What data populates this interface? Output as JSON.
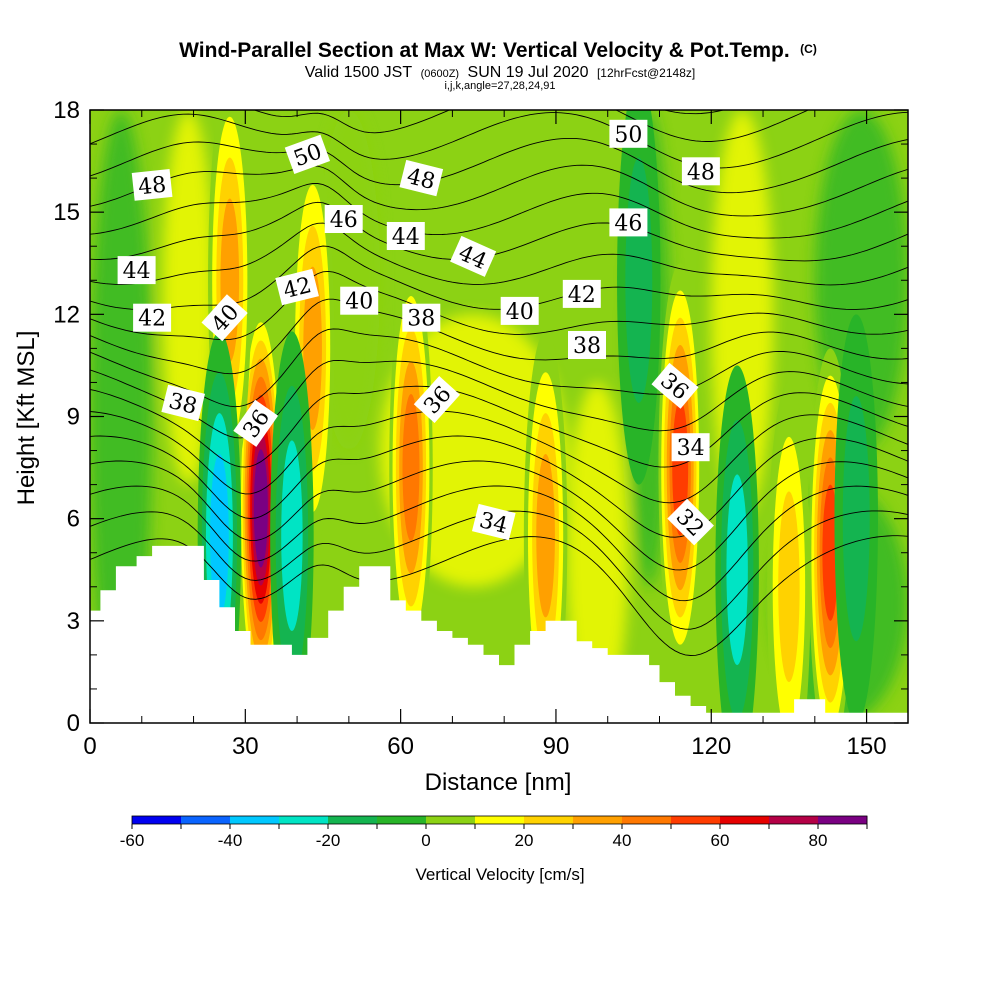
{
  "chart_data": {
    "type": "heatmap",
    "title": "Wind-Parallel Section at Max W: Vertical Velocity & Pot.Temp.",
    "title_mark": "(C)",
    "subtitle_parts": [
      "Valid 1500 JST",
      "(0600Z)",
      "SUN 19 Jul 2020",
      "[12hrFcst@2148z]"
    ],
    "subtitle2": "i,j,k,angle=27,28,24,91",
    "xlabel": "Distance [nm]",
    "ylabel": "Height [Kft MSL]",
    "xlim": [
      0,
      158
    ],
    "ylim": [
      0,
      18
    ],
    "x_ticks": [
      "0",
      "30",
      "60",
      "90",
      "120",
      "150"
    ],
    "y_ticks": [
      "0",
      "3",
      "6",
      "9",
      "12",
      "15",
      "18"
    ],
    "colorbar": {
      "label": "Vertical Velocity [cm/s]",
      "ticks": [
        "-60",
        "-40",
        "-20",
        "0",
        "20",
        "40",
        "60",
        "80"
      ],
      "bounds": [
        -60,
        90
      ],
      "step": 10,
      "colors": [
        "#0000f0",
        "#0a64ff",
        "#00c8ff",
        "#00e4c4",
        "#14b450",
        "#28b428",
        "#8cd214",
        "#ffff00",
        "#ffd200",
        "#ffa000",
        "#ff7800",
        "#ff3c00",
        "#e60000",
        "#b40046",
        "#7a0082"
      ]
    },
    "terrain_kft": [
      [
        0,
        3.3
      ],
      [
        2,
        3.3
      ],
      [
        2,
        3.9
      ],
      [
        5,
        3.9
      ],
      [
        5,
        4.6
      ],
      [
        9,
        4.6
      ],
      [
        9,
        4.9
      ],
      [
        12,
        4.9
      ],
      [
        12,
        5.2
      ],
      [
        16,
        5.2
      ],
      [
        16,
        5.2
      ],
      [
        22,
        5.2
      ],
      [
        22,
        4.2
      ],
      [
        25,
        4.2
      ],
      [
        25,
        3.4
      ],
      [
        28,
        3.4
      ],
      [
        28,
        2.7
      ],
      [
        31,
        2.7
      ],
      [
        31,
        2.3
      ],
      [
        37,
        2.3
      ],
      [
        37,
        2.3
      ],
      [
        39,
        2.3
      ],
      [
        39,
        2.0
      ],
      [
        42,
        2.0
      ],
      [
        42,
        2.5
      ],
      [
        46,
        2.5
      ],
      [
        46,
        3.3
      ],
      [
        49,
        3.3
      ],
      [
        49,
        4.0
      ],
      [
        52,
        4.0
      ],
      [
        52,
        4.6
      ],
      [
        55,
        4.6
      ],
      [
        55,
        4.6
      ],
      [
        58,
        4.6
      ],
      [
        58,
        3.6
      ],
      [
        61,
        3.6
      ],
      [
        61,
        3.3
      ],
      [
        64,
        3.3
      ],
      [
        64,
        3.0
      ],
      [
        67,
        3.0
      ],
      [
        67,
        2.7
      ],
      [
        70,
        2.7
      ],
      [
        70,
        2.5
      ],
      [
        73,
        2.5
      ],
      [
        73,
        2.3
      ],
      [
        76,
        2.3
      ],
      [
        76,
        2.0
      ],
      [
        79,
        2.0
      ],
      [
        79,
        1.7
      ],
      [
        82,
        1.7
      ],
      [
        82,
        2.3
      ],
      [
        85,
        2.3
      ],
      [
        85,
        2.7
      ],
      [
        88,
        2.7
      ],
      [
        88,
        3.0
      ],
      [
        94,
        3.0
      ],
      [
        94,
        2.4
      ],
      [
        97,
        2.4
      ],
      [
        97,
        2.2
      ],
      [
        100,
        2.2
      ],
      [
        100,
        2.0
      ],
      [
        104,
        2.0
      ],
      [
        104,
        2.0
      ],
      [
        108,
        2.0
      ],
      [
        108,
        1.7
      ],
      [
        110,
        1.7
      ],
      [
        110,
        1.2
      ],
      [
        113,
        1.2
      ],
      [
        113,
        0.8
      ],
      [
        116,
        0.8
      ],
      [
        116,
        0.5
      ],
      [
        119,
        0.5
      ],
      [
        119,
        0.3
      ],
      [
        124,
        0.3
      ],
      [
        124,
        0.3
      ],
      [
        131,
        0.3
      ],
      [
        131,
        0.3
      ],
      [
        136,
        0.3
      ],
      [
        136,
        0.7
      ],
      [
        142,
        0.7
      ],
      [
        142,
        0.3
      ],
      [
        158,
        0.3
      ]
    ],
    "updraft_cores": [
      {
        "x": 33,
        "z": 6.3,
        "w": 88
      },
      {
        "x": 114,
        "z": 7.5,
        "w": 55
      },
      {
        "x": 143,
        "z": 5.0,
        "w": 55
      },
      {
        "x": 62,
        "z": 7.5,
        "w": 45
      },
      {
        "x": 43,
        "z": 11.0,
        "w": 35
      },
      {
        "x": 27,
        "z": 13.0,
        "w": 35
      },
      {
        "x": 135,
        "z": 4.0,
        "w": 25
      },
      {
        "x": 88,
        "z": 5.5,
        "w": 35
      }
    ],
    "downdraft_cores": [
      {
        "x": 25,
        "z": 5.5,
        "w": -35
      },
      {
        "x": 39,
        "z": 5.5,
        "w": -25
      },
      {
        "x": 125,
        "z": 4.5,
        "w": -25
      },
      {
        "x": 106,
        "z": 13.0,
        "w": -20
      },
      {
        "x": 148,
        "z": 6.0,
        "w": -20
      }
    ],
    "theta_isentropes_K": [
      32,
      33,
      34,
      35,
      36,
      37,
      38,
      39,
      40,
      41,
      42,
      43,
      44,
      45,
      46,
      47,
      48,
      49,
      50,
      51
    ],
    "theta_labels": [
      {
        "text": "50",
        "x": 42,
        "z": 16.7,
        "angle": -20
      },
      {
        "text": "48",
        "x": 12,
        "z": 15.8,
        "angle": -6
      },
      {
        "text": "48",
        "x": 64,
        "z": 16.0,
        "angle": 14
      },
      {
        "text": "50",
        "x": 104,
        "z": 17.3,
        "angle": 0
      },
      {
        "text": "48",
        "x": 118,
        "z": 16.2,
        "angle": 0
      },
      {
        "text": "46",
        "x": 49,
        "z": 14.8,
        "angle": 0
      },
      {
        "text": "46",
        "x": 104,
        "z": 14.7,
        "angle": 0
      },
      {
        "text": "44",
        "x": 9,
        "z": 13.3,
        "angle": 0
      },
      {
        "text": "44",
        "x": 61,
        "z": 14.3,
        "angle": 0
      },
      {
        "text": "44",
        "x": 74,
        "z": 13.7,
        "angle": 24
      },
      {
        "text": "42",
        "x": 12,
        "z": 11.9,
        "angle": 0
      },
      {
        "text": "42",
        "x": 40,
        "z": 12.8,
        "angle": -14
      },
      {
        "text": "42",
        "x": 95,
        "z": 12.6,
        "angle": 0
      },
      {
        "text": "40",
        "x": 26,
        "z": 11.9,
        "angle": -48
      },
      {
        "text": "40",
        "x": 52,
        "z": 12.4,
        "angle": 0
      },
      {
        "text": "40",
        "x": 83,
        "z": 12.1,
        "angle": 0
      },
      {
        "text": "38",
        "x": 64,
        "z": 11.9,
        "angle": 0
      },
      {
        "text": "38",
        "x": 96,
        "z": 11.1,
        "angle": 0
      },
      {
        "text": "38",
        "x": 18,
        "z": 9.4,
        "angle": 14
      },
      {
        "text": "36",
        "x": 32,
        "z": 8.8,
        "angle": -55
      },
      {
        "text": "36",
        "x": 67,
        "z": 9.5,
        "angle": -48
      },
      {
        "text": "36",
        "x": 113,
        "z": 9.9,
        "angle": 40
      },
      {
        "text": "34",
        "x": 78,
        "z": 5.9,
        "angle": 14
      },
      {
        "text": "34",
        "x": 116,
        "z": 8.1,
        "angle": 0
      },
      {
        "text": "32",
        "x": 116,
        "z": 5.9,
        "angle": 45
      }
    ],
    "grid": false,
    "legend": "colorbar-bottom"
  }
}
